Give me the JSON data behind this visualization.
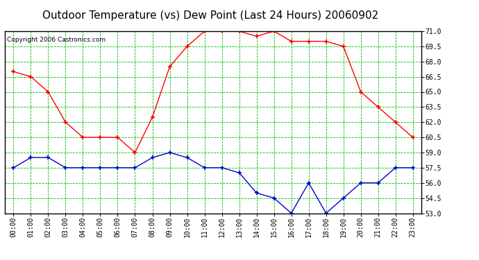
{
  "title": "Outdoor Temperature (vs) Dew Point (Last 24 Hours) 20060902",
  "copyright": "Copyright 2006 Castronics.com",
  "hours": [
    "00:00",
    "01:00",
    "02:00",
    "03:00",
    "04:00",
    "05:00",
    "06:00",
    "07:00",
    "08:00",
    "09:00",
    "10:00",
    "11:00",
    "12:00",
    "13:00",
    "14:00",
    "15:00",
    "16:00",
    "17:00",
    "18:00",
    "19:00",
    "20:00",
    "21:00",
    "22:00",
    "23:00"
  ],
  "temp": [
    67.0,
    66.5,
    65.0,
    62.0,
    60.5,
    60.5,
    60.5,
    59.0,
    62.5,
    67.5,
    69.5,
    71.0,
    71.0,
    71.0,
    70.5,
    71.0,
    70.0,
    70.0,
    70.0,
    69.5,
    65.0,
    63.5,
    62.0,
    60.5
  ],
  "dew": [
    57.5,
    58.5,
    58.5,
    57.5,
    57.5,
    57.5,
    57.5,
    57.5,
    58.5,
    59.0,
    58.5,
    57.5,
    57.5,
    57.0,
    55.0,
    54.5,
    53.0,
    56.0,
    53.0,
    54.5,
    56.0,
    56.0,
    57.5,
    57.5
  ],
  "temp_color": "#ff0000",
  "dew_color": "#0000cc",
  "bg_color": "#ffffff",
  "plot_bg_color": "#ffffff",
  "grid_color": "#00bb00",
  "ylim_min": 53.0,
  "ylim_max": 71.0,
  "ytick_interval": 1.5,
  "title_fontsize": 11,
  "copyright_fontsize": 6.5,
  "tick_fontsize": 7
}
